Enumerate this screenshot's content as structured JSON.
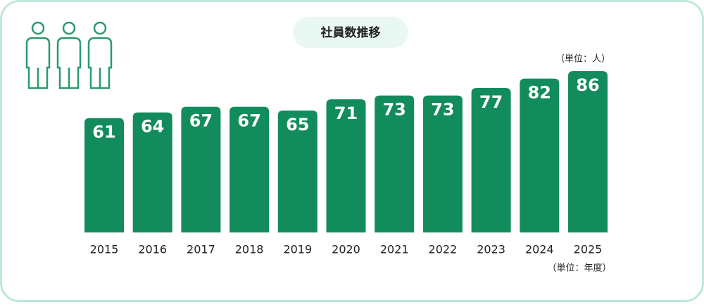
{
  "chart_data": {
    "type": "bar",
    "title": "社員数推移",
    "categories": [
      "2015",
      "2016",
      "2017",
      "2018",
      "2019",
      "2020",
      "2021",
      "2022",
      "2023",
      "2024",
      "2025"
    ],
    "values": [
      61,
      64,
      67,
      67,
      65,
      71,
      73,
      73,
      77,
      82,
      86
    ],
    "color": "#128c5c",
    "value_unit_note": "（単位：人）",
    "category_unit_note": "（単位：年度）"
  }
}
